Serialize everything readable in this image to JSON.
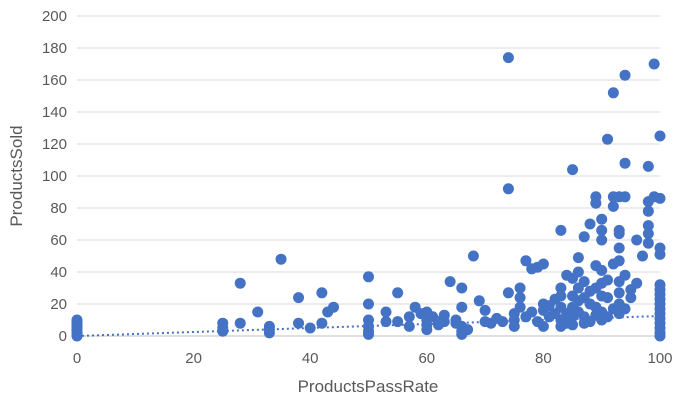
{
  "chart_data": {
    "type": "scatter",
    "title": "",
    "xlabel": "ProductsPassRate",
    "ylabel": "ProductsSold",
    "xlim": [
      0,
      100
    ],
    "ylim": [
      0,
      200
    ],
    "xticks": [
      0,
      20,
      40,
      60,
      80,
      100
    ],
    "yticks": [
      0,
      20,
      40,
      60,
      80,
      100,
      120,
      140,
      160,
      180,
      200
    ],
    "grid": "horizontal",
    "legend": "none",
    "colors": {
      "marker": "#4472C4",
      "trendline": "#4472C4",
      "grid": "#D9D9D9",
      "axis": "#BFBFBF"
    },
    "trendline": {
      "type": "linear",
      "style": "dotted",
      "x": [
        0,
        100
      ],
      "y": [
        0,
        12.5
      ]
    },
    "series": [
      {
        "points": [
          [
            0,
            0
          ],
          [
            0,
            1
          ],
          [
            0,
            2
          ],
          [
            0,
            3
          ],
          [
            0,
            4
          ],
          [
            0,
            5
          ],
          [
            0,
            6
          ],
          [
            0,
            7
          ],
          [
            0,
            8
          ],
          [
            0,
            9
          ],
          [
            0,
            10
          ],
          [
            25,
            3
          ],
          [
            25,
            5
          ],
          [
            25,
            8
          ],
          [
            28,
            33
          ],
          [
            28,
            8
          ],
          [
            31,
            15
          ],
          [
            33,
            2
          ],
          [
            33,
            4
          ],
          [
            33,
            6
          ],
          [
            35,
            48
          ],
          [
            38,
            24
          ],
          [
            38,
            8
          ],
          [
            40,
            5
          ],
          [
            42,
            27
          ],
          [
            42,
            8
          ],
          [
            43,
            15
          ],
          [
            44,
            18
          ],
          [
            50,
            37
          ],
          [
            50,
            20
          ],
          [
            50,
            10
          ],
          [
            50,
            6
          ],
          [
            50,
            3
          ],
          [
            50,
            1
          ],
          [
            53,
            15
          ],
          [
            53,
            9
          ],
          [
            55,
            27
          ],
          [
            55,
            9
          ],
          [
            57,
            12
          ],
          [
            57,
            6
          ],
          [
            58,
            18
          ],
          [
            59,
            14
          ],
          [
            60,
            15
          ],
          [
            60,
            10
          ],
          [
            60,
            7
          ],
          [
            60,
            4
          ],
          [
            61,
            12
          ],
          [
            62,
            9
          ],
          [
            62,
            7
          ],
          [
            63,
            13
          ],
          [
            63,
            9
          ],
          [
            64,
            34
          ],
          [
            65,
            10
          ],
          [
            65,
            8
          ],
          [
            66,
            30
          ],
          [
            66,
            18
          ],
          [
            66,
            6
          ],
          [
            66,
            3
          ],
          [
            66,
            1
          ],
          [
            67,
            4
          ],
          [
            68,
            50
          ],
          [
            69,
            22
          ],
          [
            70,
            16
          ],
          [
            70,
            9
          ],
          [
            71,
            8
          ],
          [
            72,
            11
          ],
          [
            73,
            9
          ],
          [
            74,
            174
          ],
          [
            74,
            92
          ],
          [
            74,
            27
          ],
          [
            75,
            14
          ],
          [
            75,
            10
          ],
          [
            75,
            6
          ],
          [
            76,
            30
          ],
          [
            76,
            24
          ],
          [
            76,
            18
          ],
          [
            77,
            12
          ],
          [
            77,
            47
          ],
          [
            78,
            42
          ],
          [
            78,
            15
          ],
          [
            79,
            9
          ],
          [
            79,
            43
          ],
          [
            80,
            45
          ],
          [
            80,
            20
          ],
          [
            80,
            16
          ],
          [
            80,
            6
          ],
          [
            81,
            12
          ],
          [
            81,
            19
          ],
          [
            82,
            14
          ],
          [
            82,
            23
          ],
          [
            83,
            66
          ],
          [
            83,
            30
          ],
          [
            83,
            25
          ],
          [
            83,
            18
          ],
          [
            83,
            10
          ],
          [
            83,
            6
          ],
          [
            84,
            38
          ],
          [
            84,
            14
          ],
          [
            84,
            8
          ],
          [
            85,
            104
          ],
          [
            85,
            36
          ],
          [
            85,
            25
          ],
          [
            85,
            18
          ],
          [
            85,
            12
          ],
          [
            85,
            7
          ],
          [
            86,
            49
          ],
          [
            86,
            40
          ],
          [
            86,
            30
          ],
          [
            86,
            22
          ],
          [
            86,
            15
          ],
          [
            87,
            62
          ],
          [
            87,
            34
          ],
          [
            87,
            24
          ],
          [
            87,
            12
          ],
          [
            87,
            8
          ],
          [
            88,
            70
          ],
          [
            88,
            28
          ],
          [
            88,
            20
          ],
          [
            88,
            9
          ],
          [
            89,
            87
          ],
          [
            89,
            83
          ],
          [
            89,
            44
          ],
          [
            89,
            30
          ],
          [
            89,
            18
          ],
          [
            89,
            13
          ],
          [
            90,
            73
          ],
          [
            90,
            66
          ],
          [
            90,
            60
          ],
          [
            90,
            41
          ],
          [
            90,
            33
          ],
          [
            90,
            25
          ],
          [
            90,
            15
          ],
          [
            90,
            10
          ],
          [
            91,
            123
          ],
          [
            91,
            35
          ],
          [
            91,
            24
          ],
          [
            91,
            12
          ],
          [
            92,
            152
          ],
          [
            92,
            87
          ],
          [
            92,
            81
          ],
          [
            92,
            45
          ],
          [
            92,
            17
          ],
          [
            93,
            87
          ],
          [
            93,
            66
          ],
          [
            93,
            64
          ],
          [
            93,
            55
          ],
          [
            93,
            47
          ],
          [
            93,
            34
          ],
          [
            93,
            27
          ],
          [
            93,
            20
          ],
          [
            93,
            14
          ],
          [
            94,
            163
          ],
          [
            94,
            108
          ],
          [
            94,
            87
          ],
          [
            94,
            38
          ],
          [
            94,
            17
          ],
          [
            95,
            24
          ],
          [
            95,
            29
          ],
          [
            96,
            60
          ],
          [
            96,
            33
          ],
          [
            97,
            50
          ],
          [
            98,
            106
          ],
          [
            98,
            84
          ],
          [
            98,
            78
          ],
          [
            98,
            69
          ],
          [
            98,
            64
          ],
          [
            98,
            58
          ],
          [
            99,
            170
          ],
          [
            99,
            87
          ],
          [
            100,
            125
          ],
          [
            100,
            86
          ],
          [
            100,
            55
          ],
          [
            100,
            51
          ],
          [
            100,
            32
          ],
          [
            100,
            29
          ],
          [
            100,
            26
          ],
          [
            100,
            23
          ],
          [
            100,
            20
          ],
          [
            100,
            17
          ],
          [
            100,
            14
          ],
          [
            100,
            11
          ],
          [
            100,
            8
          ],
          [
            100,
            5
          ],
          [
            100,
            2
          ],
          [
            100,
            0
          ]
        ]
      }
    ]
  }
}
